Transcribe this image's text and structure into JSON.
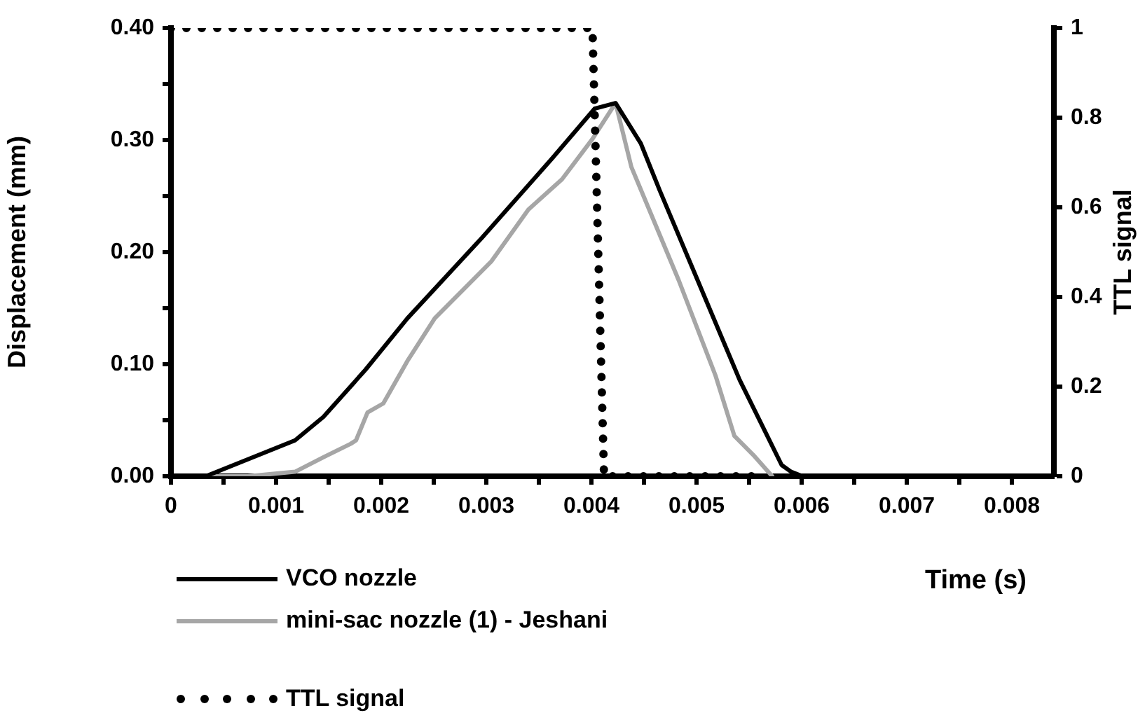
{
  "chart_data": {
    "type": "line",
    "xlabel": "Time (s)",
    "ylabel": "Displacement (mm)",
    "y2label": "TTL signal",
    "xlim": [
      0,
      0.0084
    ],
    "xticks": [
      0,
      {
        "value": 0.0005,
        "label": null
      },
      0.001,
      {
        "value": 0.0015,
        "label": null
      },
      0.002,
      {
        "value": 0.0025,
        "label": null
      },
      0.003,
      {
        "value": 0.0035,
        "label": null
      },
      0.004,
      {
        "value": 0.0045,
        "label": null
      },
      0.005,
      {
        "value": 0.0055,
        "label": null
      },
      0.006,
      {
        "value": 0.0065,
        "label": null
      },
      0.007,
      {
        "value": 0.0075,
        "label": null
      },
      0.008
    ],
    "ylim": [
      0,
      0.4
    ],
    "yticks": [
      {
        "value": 0,
        "label": "0.00"
      },
      {
        "value": 0.05,
        "label": null
      },
      {
        "value": 0.1,
        "label": "0.10"
      },
      {
        "value": 0.15,
        "label": null
      },
      {
        "value": 0.2,
        "label": "0.20"
      },
      {
        "value": 0.25,
        "label": null
      },
      {
        "value": 0.3,
        "label": "0.30"
      },
      {
        "value": 0.35,
        "label": null
      },
      {
        "value": 0.4,
        "label": "0.40"
      }
    ],
    "y2lim": [
      0,
      1
    ],
    "y2ticks": [
      0,
      0.2,
      0.4,
      0.6,
      0.8,
      1
    ],
    "grid": false,
    "legend": "bottom",
    "marker": "none",
    "series": [
      {
        "name": "VCO nozzle",
        "color": "#000000",
        "line_style": "solid",
        "x": [
          0,
          0.00033,
          0.00118,
          0.00145,
          0.00185,
          0.00225,
          0.00296,
          0.00363,
          0.00403,
          0.00423,
          0.00447,
          0.00465,
          0.00501,
          0.00541,
          0.00581,
          0.0059,
          0.00601,
          0.008
        ],
        "values": [
          0,
          0,
          0.032,
          0.053,
          0.095,
          0.141,
          0.213,
          0.284,
          0.328,
          0.333,
          0.297,
          0.255,
          0.175,
          0.086,
          0.01,
          0.004,
          0,
          0
        ]
      },
      {
        "name": "mini-sac nozzle (1) - Jeshani",
        "color": "#a6a6a6",
        "line_style": "solid",
        "x": [
          0,
          0.00073,
          0.00118,
          0.00145,
          0.00171,
          0.00176,
          0.00187,
          0.00202,
          0.00225,
          0.00251,
          0.00305,
          0.0034,
          0.00372,
          0.00401,
          0.00423,
          0.00438,
          0.00483,
          0.00518,
          0.00536,
          0.00554,
          0.00572
        ],
        "values": [
          0,
          0,
          0.004,
          0.017,
          0.029,
          0.032,
          0.057,
          0.065,
          0.103,
          0.141,
          0.192,
          0.238,
          0.265,
          0.301,
          0.333,
          0.276,
          0.175,
          0.09,
          0.036,
          0.019,
          0
        ]
      },
      {
        "name": "TTL signal",
        "color": "#000000",
        "line_style": "dotted",
        "axis": "y2",
        "x": [
          0,
          0.00401,
          0.00412,
          0.0056
        ],
        "values": [
          1,
          1,
          0,
          0
        ]
      }
    ]
  }
}
